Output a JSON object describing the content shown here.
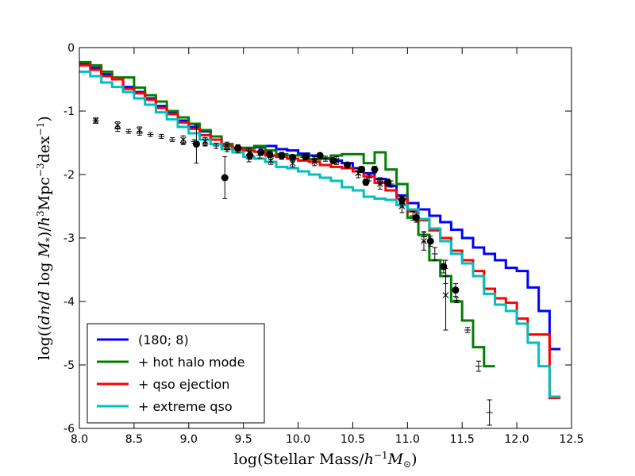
{
  "chart_data": {
    "type": "line",
    "title": "",
    "xlabel": "log(Stellar Mass/h⁻¹M⊙)",
    "ylabel": "log((dn/dlog M*)/h³Mpc⁻³dex⁻¹)",
    "xlim": [
      8.0,
      12.5
    ],
    "ylim": [
      -6,
      0
    ],
    "xticks": [
      "8.0",
      "8.5",
      "9.0",
      "9.5",
      "10.0",
      "10.5",
      "11.0",
      "11.5",
      "12.0",
      "12.5"
    ],
    "yticks": [
      "0",
      "-1",
      "-2",
      "-3",
      "-4",
      "-5",
      "-6"
    ],
    "legend_position": "lower-left",
    "series": [
      {
        "name": "(180; 8)",
        "color": "#0000ff",
        "step": 0.1,
        "x": [
          8.05,
          8.15,
          8.25,
          8.35,
          8.45,
          8.55,
          8.65,
          8.75,
          8.85,
          8.95,
          9.05,
          9.15,
          9.25,
          9.35,
          9.45,
          9.55,
          9.65,
          9.75,
          9.85,
          9.95,
          10.05,
          10.15,
          10.25,
          10.35,
          10.45,
          10.55,
          10.65,
          10.75,
          10.85,
          10.95,
          11.05,
          11.15,
          11.25,
          11.35,
          11.45,
          11.55,
          11.65,
          11.75,
          11.85,
          11.95,
          12.05,
          12.15,
          12.25,
          12.35
        ],
        "y": [
          -0.25,
          -0.32,
          -0.42,
          -0.5,
          -0.62,
          -0.7,
          -0.8,
          -0.92,
          -1.02,
          -1.15,
          -1.25,
          -1.32,
          -1.45,
          -1.55,
          -1.58,
          -1.58,
          -1.57,
          -1.55,
          -1.6,
          -1.62,
          -1.67,
          -1.7,
          -1.75,
          -1.78,
          -1.82,
          -1.9,
          -1.98,
          -2.07,
          -2.18,
          -2.33,
          -2.45,
          -2.55,
          -2.65,
          -2.75,
          -2.87,
          -3.0,
          -3.15,
          -3.25,
          -3.35,
          -3.47,
          -3.52,
          -3.78,
          -4.15,
          -4.75
        ]
      },
      {
        "name": "+ hot halo mode",
        "color": "#008000",
        "step": 0.1,
        "x": [
          8.05,
          8.15,
          8.25,
          8.35,
          8.45,
          8.55,
          8.65,
          8.75,
          8.85,
          8.95,
          9.05,
          9.15,
          9.25,
          9.35,
          9.45,
          9.55,
          9.65,
          9.75,
          9.85,
          9.95,
          10.05,
          10.15,
          10.25,
          10.35,
          10.45,
          10.55,
          10.65,
          10.75,
          10.85,
          10.95,
          11.05,
          11.15,
          11.25,
          11.35,
          11.45,
          11.55,
          11.65,
          11.75
        ],
        "y": [
          -0.23,
          -0.28,
          -0.38,
          -0.47,
          -0.47,
          -0.63,
          -0.75,
          -0.85,
          -1.0,
          -1.1,
          -1.2,
          -1.3,
          -1.4,
          -1.52,
          -1.58,
          -1.58,
          -1.55,
          -1.62,
          -1.68,
          -1.7,
          -1.7,
          -1.76,
          -1.74,
          -1.7,
          -1.68,
          -1.68,
          -1.82,
          -1.65,
          -1.92,
          -2.15,
          -2.68,
          -2.95,
          -3.35,
          -3.6,
          -4.0,
          -4.3,
          -4.72,
          -5.02
        ]
      },
      {
        "name": "+ qso ejection",
        "color": "#ff0000",
        "step": 0.1,
        "x": [
          8.05,
          8.15,
          8.25,
          8.35,
          8.45,
          8.55,
          8.65,
          8.75,
          8.85,
          8.95,
          9.05,
          9.15,
          9.25,
          9.35,
          9.45,
          9.55,
          9.65,
          9.75,
          9.85,
          9.95,
          10.05,
          10.15,
          10.25,
          10.35,
          10.45,
          10.55,
          10.65,
          10.75,
          10.85,
          10.95,
          11.05,
          11.15,
          11.25,
          11.35,
          11.45,
          11.55,
          11.65,
          11.75,
          11.85,
          11.95,
          12.05,
          12.15,
          12.25,
          12.35
        ],
        "y": [
          -0.28,
          -0.35,
          -0.45,
          -0.5,
          -0.65,
          -0.72,
          -0.82,
          -0.95,
          -1.05,
          -1.18,
          -1.28,
          -1.38,
          -1.45,
          -1.55,
          -1.6,
          -1.62,
          -1.64,
          -1.7,
          -1.72,
          -1.75,
          -1.78,
          -1.8,
          -1.85,
          -1.88,
          -1.9,
          -1.95,
          -2.03,
          -2.13,
          -2.25,
          -2.38,
          -2.58,
          -2.72,
          -2.88,
          -3.0,
          -3.2,
          -3.35,
          -3.52,
          -3.8,
          -3.95,
          -4.02,
          -4.27,
          -4.52,
          -4.52,
          -5.52
        ]
      },
      {
        "name": "+ extreme qso",
        "color": "#00bfbf",
        "step": 0.1,
        "x": [
          8.05,
          8.15,
          8.25,
          8.35,
          8.45,
          8.55,
          8.65,
          8.75,
          8.85,
          8.95,
          9.05,
          9.15,
          9.25,
          9.35,
          9.45,
          9.55,
          9.65,
          9.75,
          9.85,
          9.95,
          10.05,
          10.15,
          10.25,
          10.35,
          10.45,
          10.55,
          10.65,
          10.75,
          10.85,
          10.95,
          11.05,
          11.15,
          11.25,
          11.35,
          11.45,
          11.55,
          11.65,
          11.75,
          11.85,
          11.95,
          12.05,
          12.15,
          12.25,
          12.35
        ],
        "y": [
          -0.38,
          -0.45,
          -0.55,
          -0.62,
          -0.7,
          -0.8,
          -0.9,
          -1.02,
          -1.13,
          -1.25,
          -1.35,
          -1.45,
          -1.52,
          -1.6,
          -1.65,
          -1.72,
          -1.75,
          -1.8,
          -1.88,
          -1.9,
          -1.95,
          -2.0,
          -2.05,
          -2.1,
          -2.2,
          -2.25,
          -2.35,
          -2.38,
          -2.4,
          -2.48,
          -2.55,
          -2.7,
          -2.85,
          -3.05,
          -3.25,
          -3.4,
          -3.6,
          -3.88,
          -4.05,
          -4.15,
          -4.35,
          -4.65,
          -5.02,
          -5.5
        ]
      }
    ],
    "observations": [
      {
        "name": "filled circles",
        "marker": "o",
        "x": [
          9.07,
          9.33,
          9.45,
          9.56,
          9.66,
          9.74,
          9.85,
          9.95,
          10.07,
          10.2,
          10.32,
          10.45,
          10.58,
          10.62,
          10.7,
          10.82,
          10.95,
          11.08,
          11.21,
          11.33,
          11.44
        ],
        "y": [
          -1.52,
          -2.05,
          -1.58,
          -1.7,
          -1.65,
          -1.68,
          -1.7,
          -1.73,
          -1.72,
          -1.7,
          -1.78,
          -1.85,
          -1.92,
          -2.12,
          -1.92,
          -2.12,
          -2.4,
          -2.68,
          -3.05,
          -3.45,
          -3.82
        ],
        "err": [
          0.3,
          0.33,
          0.05,
          0.06,
          0.05,
          0.05,
          0.05,
          0.04,
          0.04,
          0.04,
          0.04,
          0.04,
          0.05,
          0.05,
          0.05,
          0.05,
          0.06,
          0.07,
          0.08,
          0.1,
          0.1
        ]
      },
      {
        "name": "plus markers",
        "marker": "+",
        "x": [
          8.15,
          8.35,
          8.45,
          8.55,
          8.65,
          8.75,
          8.85,
          8.95,
          9.05,
          9.15,
          9.25,
          9.35,
          9.45,
          9.55,
          9.65,
          9.75,
          9.85,
          9.95,
          10.05,
          10.15,
          10.25,
          10.35,
          10.45,
          10.55,
          10.65,
          10.75,
          10.85,
          10.95,
          11.05,
          11.15,
          11.25,
          11.35,
          11.45,
          11.55,
          11.65,
          11.75
        ],
        "y": [
          -1.15,
          -1.28,
          -1.32,
          -1.35,
          -1.37,
          -1.4,
          -1.45,
          -1.5,
          -1.48,
          -1.52,
          -1.55,
          -1.6,
          -1.62,
          -1.75,
          -1.7,
          -1.72,
          -1.72,
          -1.76,
          -1.73,
          -1.76,
          -1.75,
          -1.8,
          -1.85,
          -1.95,
          -2.05,
          -2.1,
          -2.15,
          -2.45,
          -2.65,
          -2.98,
          -3.25,
          -3.6,
          -3.98,
          -4.45,
          -5.02,
          -5.75
        ],
        "err": [
          0.04,
          0.04,
          0.03,
          0.03,
          0.03,
          0.03,
          0.03,
          0.03,
          0.03,
          0.03,
          0.04,
          0.04,
          0.04,
          0.05,
          0.04,
          0.04,
          0.04,
          0.04,
          0.04,
          0.04,
          0.04,
          0.04,
          0.04,
          0.05,
          0.05,
          0.05,
          0.05,
          0.06,
          0.07,
          0.08,
          0.1,
          0.12,
          0.04,
          0.04,
          0.08,
          0.2
        ]
      },
      {
        "name": "x markers",
        "marker": "x",
        "x": [
          8.15,
          8.35,
          8.55,
          8.95,
          9.15,
          9.35,
          9.55,
          9.75,
          9.95,
          10.15,
          10.35,
          10.55,
          10.75,
          10.95,
          11.15,
          11.35
        ],
        "y": [
          -1.15,
          -1.22,
          -1.3,
          -1.45,
          -1.48,
          -1.55,
          -1.65,
          -1.78,
          -1.82,
          -1.8,
          -1.78,
          -1.98,
          -2.15,
          -2.5,
          -3.05,
          -3.9
        ],
        "err": [
          0.04,
          0.05,
          0.05,
          0.06,
          0.06,
          0.06,
          0.06,
          0.06,
          0.06,
          0.06,
          0.06,
          0.07,
          0.08,
          0.1,
          0.14,
          0.55
        ]
      }
    ]
  }
}
